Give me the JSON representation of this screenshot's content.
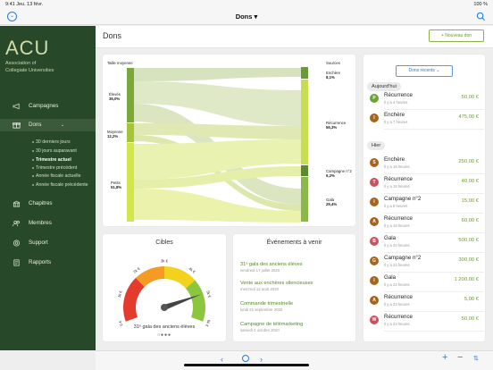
{
  "status": {
    "time": "9:41",
    "date": "Jeu. 13 févr.",
    "battery": "100 %"
  },
  "nav": {
    "title": "Dons"
  },
  "sidebar": {
    "logo_big": "ACU",
    "logo_line1": "Association of",
    "logo_line2": "Collegiate Universities",
    "items": [
      {
        "label": "Campagnes"
      },
      {
        "label": "Dons"
      },
      {
        "label": "Chapitres"
      },
      {
        "label": "Membres"
      },
      {
        "label": "Support"
      },
      {
        "label": "Rapports"
      }
    ],
    "sub_items": [
      {
        "label": "30 derniers jours"
      },
      {
        "label": "30 jours auparavant"
      },
      {
        "label": "Trimestre actuel"
      },
      {
        "label": "Trimestre précédent"
      },
      {
        "label": "Année fiscale actuelle"
      },
      {
        "label": "Année fiscale précédente"
      }
    ]
  },
  "page": {
    "title": "Dons",
    "new_button": "+ Nouveau don"
  },
  "sankey": {
    "left_title": "Taille moyenne",
    "right_title": "Sources",
    "left_nodes": [
      {
        "name": "Élevés",
        "pct": "36,0%"
      },
      {
        "name": "Moyenne",
        "pct": "12,2%"
      },
      {
        "name": "Petits",
        "pct": "51,8%"
      }
    ],
    "right_nodes": [
      {
        "name": "Enchère",
        "pct": "8,1%"
      },
      {
        "name": "Récurrence",
        "pct": "56,3%"
      },
      {
        "name": "Campagne n°2",
        "pct": "6,2%"
      },
      {
        "name": "Gala",
        "pct": "29,4%"
      }
    ]
  },
  "cibles": {
    "title": "Cibles",
    "caption": "31ᵉ gala des anciens élèves",
    "gauge_ticks": [
      "0 €",
      "1k €",
      "2k €",
      "3k €",
      "4k €",
      "5k €",
      "6k €"
    ],
    "gauge_value_fraction": 0.82,
    "colors": {
      "red": "#e53b2c",
      "orange": "#f59b23",
      "yellow": "#f3d21d",
      "green": "#8cc63f"
    }
  },
  "events": {
    "title": "Événements à venir",
    "items": [
      {
        "title": "31ᵉ gala des anciens élèves",
        "date": "vendredi 17 juillet 2020"
      },
      {
        "title": "Vente aux enchères silencieuses",
        "date": "mercredi 12 août 2020"
      },
      {
        "title": "Commande trimestrielle",
        "date": "lundi 21 septembre 2020"
      },
      {
        "title": "Campagne de télémarketing",
        "date": "samedi 3 octobre 2020"
      }
    ]
  },
  "recent": {
    "button": "Dons récents ⌄",
    "sections": [
      {
        "label": "Aujourd'hui"
      },
      {
        "label": "Hier"
      }
    ],
    "rows": [
      {
        "letter": "P",
        "color": "#6aa534",
        "name": "Récurrence",
        "time": "Il y a 4 heures",
        "value": "50,00 €"
      },
      {
        "letter": "I",
        "color": "#a7641c",
        "name": "Enchère",
        "time": "Il y a 7 heures",
        "value": "475,00 €"
      },
      {
        "letter": "S",
        "color": "#a7641c",
        "name": "Enchère",
        "time": "Il y a 16 heures",
        "value": "250,00 €"
      },
      {
        "letter": "T",
        "color": "#c9525e",
        "name": "Récurrence",
        "time": "Il y a 18 heures",
        "value": "40,00 €"
      },
      {
        "letter": "I",
        "color": "#a7641c",
        "name": "Campagne n°2",
        "time": "Il y a 8 heures",
        "value": "15,00 €"
      },
      {
        "letter": "A",
        "color": "#a7641c",
        "name": "Récurrence",
        "time": "Il y a 19 heures",
        "value": "60,00 €"
      },
      {
        "letter": "B",
        "color": "#c9525e",
        "name": "Gala",
        "time": "Il y a 20 heures",
        "value": "500,00 €"
      },
      {
        "letter": "G",
        "color": "#a7641c",
        "name": "Campagne n°2",
        "time": "Il y a 22 heures",
        "value": "300,00 €"
      },
      {
        "letter": "I",
        "color": "#a7641c",
        "name": "Gala",
        "time": "Il y a 22 heures",
        "value": "1 200,00 €"
      },
      {
        "letter": "A",
        "color": "#a7641c",
        "name": "Récurrence",
        "time": "Il y a 23 heures",
        "value": "5,00 €"
      },
      {
        "letter": "W",
        "color": "#c9525e",
        "name": "Récurrence",
        "time": "Il y a 23 heures",
        "value": "50,00 €"
      }
    ]
  }
}
